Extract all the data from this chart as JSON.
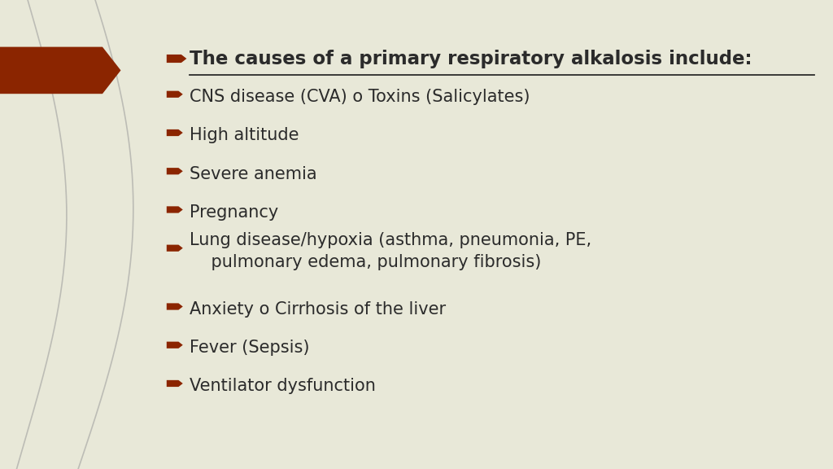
{
  "background_color": "#e8e8d8",
  "arrow_color": "#8B2500",
  "bullet_color": "#8B2500",
  "title": "The causes of a primary respiratory alkalosis include:",
  "title_color": "#2b2b2b",
  "text_color": "#2b2b2b",
  "bullet_items": [
    "CNS disease (CVA) o Toxins (Salicylates)",
    "High altitude",
    "Severe anemia",
    "Pregnancy",
    "Lung disease/hypoxia (asthma, pneumonia, PE,\n    pulmonary edema, pulmonary fibrosis)",
    "Anxiety o Cirrhosis of the liver",
    "Fever (Sepsis)",
    "Ventilator dysfunction"
  ],
  "fig_width": 10.24,
  "fig_height": 5.76,
  "dpi": 100
}
